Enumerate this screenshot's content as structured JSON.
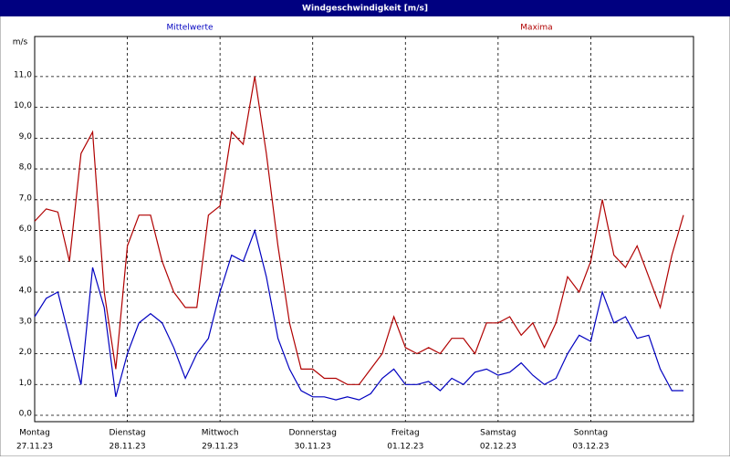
{
  "chart_data": {
    "type": "line",
    "title": "Windgeschwindigkeit [m/s]",
    "y_label": "m/s",
    "x": [
      0,
      3,
      6,
      9,
      12,
      15,
      18,
      21,
      24,
      27,
      30,
      33,
      36,
      39,
      42,
      45,
      48,
      51,
      54,
      57,
      60,
      63,
      66,
      69,
      72,
      75,
      78,
      81,
      84,
      87,
      90,
      93,
      96,
      99,
      102,
      105,
      108,
      111,
      114,
      117,
      120,
      123,
      126,
      129,
      132,
      135,
      138,
      141,
      144,
      147,
      150,
      153,
      156,
      159,
      162,
      165,
      168
    ],
    "xlim": [
      0,
      170.6
    ],
    "xticks": [
      {
        "value": 0,
        "label": "Montag",
        "date": "27.11.23"
      },
      {
        "value": 24,
        "label": "Dienstag",
        "date": "28.11.23"
      },
      {
        "value": 48,
        "label": "Mittwoch",
        "date": "29.11.23"
      },
      {
        "value": 72,
        "label": "Donnerstag",
        "date": "30.11.23"
      },
      {
        "value": 96,
        "label": "Freitag",
        "date": "01.12.23"
      },
      {
        "value": 120,
        "label": "Samstag",
        "date": "02.12.23"
      },
      {
        "value": 144,
        "label": "Sonntag",
        "date": "03.12.23"
      }
    ],
    "ylim": [
      0,
      12.3
    ],
    "yticks": [
      {
        "value": 0,
        "label": "0,0"
      },
      {
        "value": 1,
        "label": "1,0"
      },
      {
        "value": 2,
        "label": "2,0"
      },
      {
        "value": 3,
        "label": "3,0"
      },
      {
        "value": 4,
        "label": "4,0"
      },
      {
        "value": 5,
        "label": "5,0"
      },
      {
        "value": 6,
        "label": "6,0"
      },
      {
        "value": 7,
        "label": "7,0"
      },
      {
        "value": 8,
        "label": "8,0"
      },
      {
        "value": 9,
        "label": "9,0"
      },
      {
        "value": 10,
        "label": "10,0"
      },
      {
        "value": 11,
        "label": "11,0"
      }
    ],
    "grid": true,
    "series": [
      {
        "name": "Mittelwerte",
        "color": "#0000c0",
        "values": [
          3.2,
          3.8,
          4.0,
          2.5,
          1.0,
          4.8,
          3.5,
          0.6,
          2.0,
          3.0,
          3.3,
          3.0,
          2.2,
          1.2,
          2.0,
          2.5,
          4.0,
          5.2,
          5.0,
          6.0,
          4.5,
          2.5,
          1.5,
          0.8,
          0.6,
          0.6,
          0.5,
          0.6,
          0.5,
          0.7,
          1.2,
          1.5,
          1.0,
          1.0,
          1.1,
          0.8,
          1.2,
          1.0,
          1.4,
          1.5,
          1.3,
          1.4,
          1.7,
          1.3,
          1.0,
          1.2,
          2.0,
          2.6,
          2.4,
          4.0,
          3.0,
          3.2,
          2.5,
          2.6,
          1.5,
          0.8,
          0.8
        ]
      },
      {
        "name": "Maxima",
        "color": "#b00000",
        "values": [
          6.3,
          6.7,
          6.6,
          5.0,
          8.5,
          9.2,
          4.0,
          1.5,
          5.5,
          6.5,
          6.5,
          5.0,
          4.0,
          3.5,
          3.5,
          6.5,
          6.8,
          9.2,
          8.8,
          11.0,
          8.5,
          5.5,
          3.0,
          1.5,
          1.5,
          1.2,
          1.2,
          1.0,
          1.0,
          1.5,
          2.0,
          3.2,
          2.2,
          2.0,
          2.2,
          2.0,
          2.5,
          2.5,
          2.0,
          3.0,
          3.0,
          3.2,
          2.6,
          3.0,
          2.2,
          3.0,
          4.5,
          4.0,
          5.0,
          7.0,
          5.2,
          4.8,
          5.5,
          4.5,
          3.5,
          5.2,
          6.5
        ]
      }
    ]
  }
}
